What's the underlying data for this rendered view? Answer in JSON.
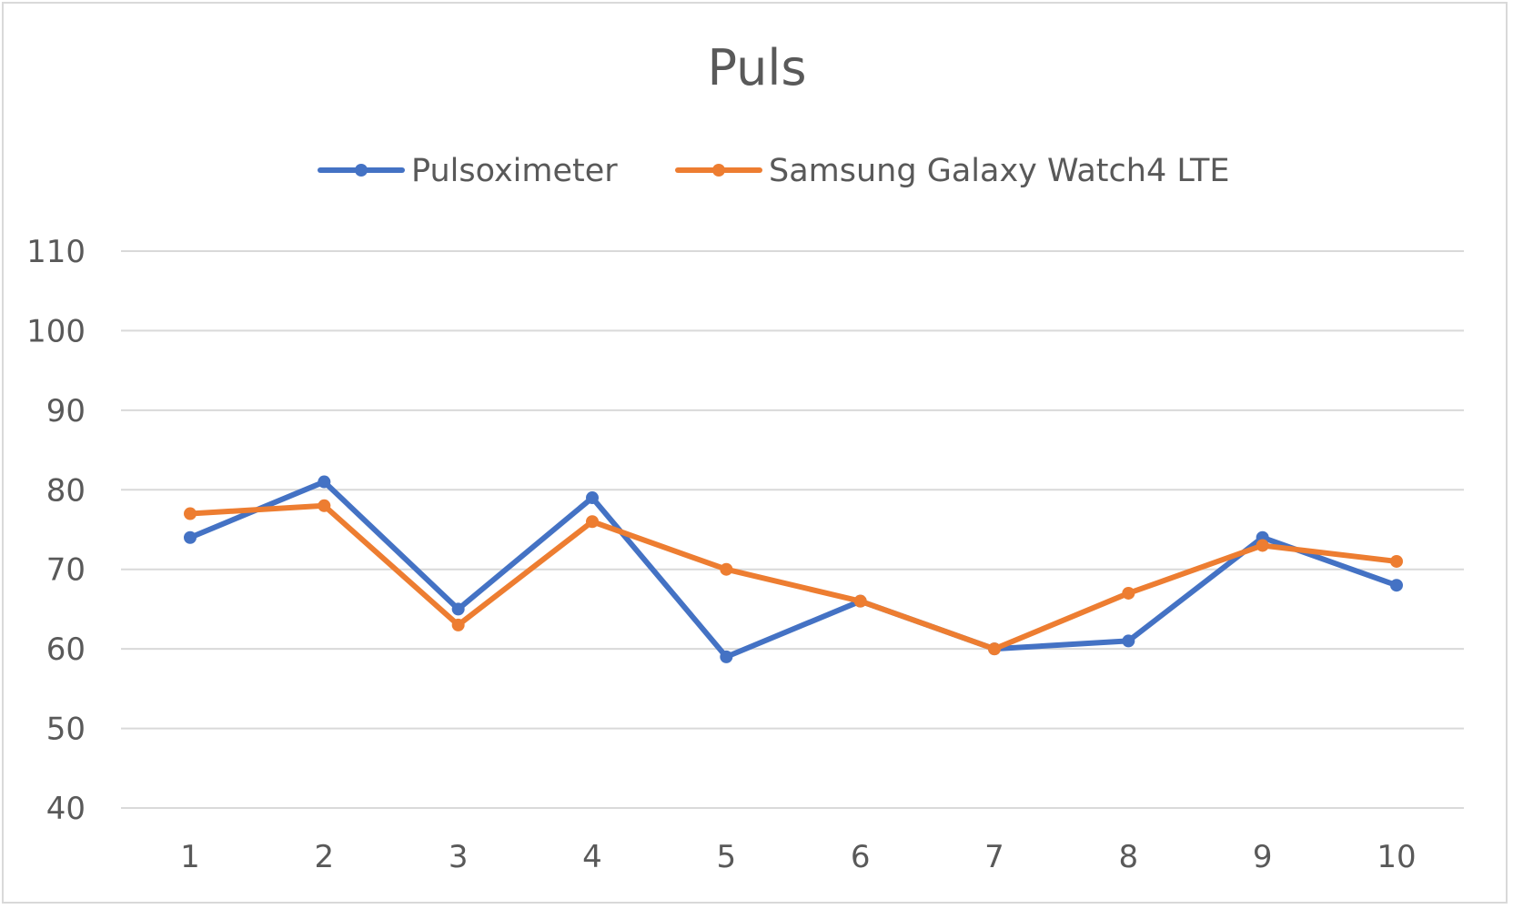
{
  "chart_data": {
    "type": "line",
    "title": "Puls",
    "xlabel": "",
    "ylabel": "",
    "categories": [
      "1",
      "2",
      "3",
      "4",
      "5",
      "6",
      "7",
      "8",
      "9",
      "10"
    ],
    "ylim": [
      40,
      110
    ],
    "yticks": [
      "110",
      "100",
      "90",
      "80",
      "70",
      "60",
      "50",
      "40"
    ],
    "grid": true,
    "legend_position": "top",
    "series": [
      {
        "name": "Pulsoximeter",
        "color": "#4472c4",
        "values": [
          74,
          81,
          65,
          79,
          59,
          66,
          60,
          61,
          74,
          68
        ]
      },
      {
        "name": "Samsung Galaxy Watch4 LTE",
        "color": "#ed7d31",
        "values": [
          77,
          78,
          63,
          76,
          70,
          66,
          60,
          67,
          73,
          71
        ]
      }
    ]
  }
}
